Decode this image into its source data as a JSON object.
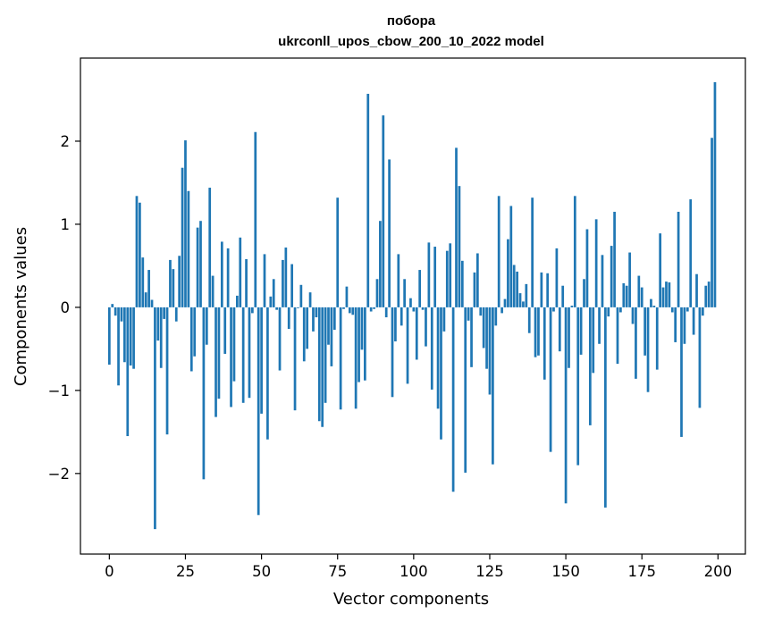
{
  "chart_data": {
    "type": "bar",
    "title": [
      "побора",
      "ukrconll_upos_cbow_200_10_2022 model"
    ],
    "xlabel": "Vector components",
    "ylabel": "Components values",
    "xlim": [
      -9.5,
      209
    ],
    "ylim": [
      -2.97,
      3.0
    ],
    "x_ticks": [
      0,
      25,
      50,
      75,
      100,
      125,
      150,
      175,
      200
    ],
    "x_tick_labels": [
      "0",
      "25",
      "50",
      "75",
      "100",
      "125",
      "150",
      "175",
      "200"
    ],
    "y_ticks": [
      -2,
      -1,
      0,
      1,
      2
    ],
    "y_tick_labels": [
      "−2",
      "−1",
      "0",
      "1",
      "2"
    ],
    "bar_color": "#1f77b4",
    "grid": false,
    "legend": "none",
    "x": [
      0,
      1,
      2,
      3,
      4,
      5,
      6,
      7,
      8,
      9,
      10,
      11,
      12,
      13,
      14,
      15,
      16,
      17,
      18,
      19,
      20,
      21,
      22,
      23,
      24,
      25,
      26,
      27,
      28,
      29,
      30,
      31,
      32,
      33,
      34,
      35,
      36,
      37,
      38,
      39,
      40,
      41,
      42,
      43,
      44,
      45,
      46,
      47,
      48,
      49,
      50,
      51,
      52,
      53,
      54,
      55,
      56,
      57,
      58,
      59,
      60,
      61,
      62,
      63,
      64,
      65,
      66,
      67,
      68,
      69,
      70,
      71,
      72,
      73,
      74,
      75,
      76,
      77,
      78,
      79,
      80,
      81,
      82,
      83,
      84,
      85,
      86,
      87,
      88,
      89,
      90,
      91,
      92,
      93,
      94,
      95,
      96,
      97,
      98,
      99,
      100,
      101,
      102,
      103,
      104,
      105,
      106,
      107,
      108,
      109,
      110,
      111,
      112,
      113,
      114,
      115,
      116,
      117,
      118,
      119,
      120,
      121,
      122,
      123,
      124,
      125,
      126,
      127,
      128,
      129,
      130,
      131,
      132,
      133,
      134,
      135,
      136,
      137,
      138,
      139,
      140,
      141,
      142,
      143,
      144,
      145,
      146,
      147,
      148,
      149,
      150,
      151,
      152,
      153,
      154,
      155,
      156,
      157,
      158,
      159,
      160,
      161,
      162,
      163,
      164,
      165,
      166,
      167,
      168,
      169,
      170,
      171,
      172,
      173,
      174,
      175,
      176,
      177,
      178,
      179,
      180,
      181,
      182,
      183,
      184,
      185,
      186,
      187,
      188,
      189,
      190,
      191,
      192,
      193,
      194,
      195,
      196,
      197,
      198,
      199
    ],
    "values": [
      -0.69,
      0.04,
      -0.1,
      -0.94,
      -0.17,
      -0.66,
      -1.55,
      -0.7,
      -0.74,
      1.34,
      1.26,
      0.6,
      0.18,
      0.45,
      0.09,
      -2.67,
      -0.4,
      -0.73,
      -0.14,
      -1.53,
      0.57,
      0.46,
      -0.17,
      0.62,
      1.68,
      2.01,
      1.4,
      -0.77,
      -0.59,
      0.96,
      1.04,
      -2.07,
      -0.45,
      1.44,
      0.38,
      -1.32,
      -1.1,
      0.79,
      -0.56,
      0.71,
      -1.2,
      -0.89,
      0.14,
      0.84,
      -1.15,
      0.58,
      -1.09,
      -0.07,
      2.11,
      -2.5,
      -1.28,
      0.64,
      -1.59,
      0.13,
      0.34,
      -0.03,
      -0.76,
      0.57,
      0.72,
      -0.26,
      0.52,
      -1.24,
      -0.01,
      0.27,
      -0.65,
      -0.5,
      0.18,
      -0.29,
      -0.12,
      -1.37,
      -1.44,
      -1.15,
      -0.45,
      -0.71,
      -0.27,
      1.32,
      -1.23,
      -0.02,
      0.25,
      -0.07,
      -0.09,
      -1.22,
      -0.9,
      -0.51,
      -0.88,
      2.57,
      -0.05,
      -0.02,
      0.34,
      1.04,
      2.31,
      -0.12,
      1.78,
      -1.08,
      -0.41,
      0.64,
      -0.22,
      0.34,
      -0.92,
      0.11,
      -0.05,
      -0.63,
      0.45,
      -0.03,
      -0.47,
      0.78,
      -0.99,
      0.73,
      -1.22,
      -1.59,
      -0.29,
      0.68,
      0.77,
      -2.22,
      1.92,
      1.46,
      0.56,
      -1.99,
      -0.16,
      -0.72,
      0.42,
      0.65,
      -0.1,
      -0.49,
      -0.74,
      -1.05,
      -1.89,
      -0.22,
      1.34,
      -0.07,
      0.1,
      0.82,
      1.22,
      0.51,
      0.43,
      0.17,
      0.07,
      0.28,
      -0.31,
      1.32,
      -0.6,
      -0.58,
      0.42,
      -0.87,
      0.41,
      -1.74,
      -0.05,
      0.71,
      -0.53,
      0.26,
      -2.36,
      -0.73,
      0.02,
      1.34,
      -1.9,
      -0.57,
      0.34,
      0.94,
      -1.42,
      -0.79,
      1.06,
      -0.44,
      0.63,
      -2.41,
      -0.11,
      0.74,
      1.15,
      -0.68,
      -0.06,
      0.29,
      0.26,
      0.66,
      -0.2,
      -0.86,
      0.38,
      0.24,
      -0.58,
      -1.02,
      0.1,
      0.02,
      -0.75,
      0.89,
      0.24,
      0.31,
      0.3,
      -0.06,
      -0.42,
      1.15,
      -1.56,
      -0.44,
      -0.05,
      1.3,
      -0.33,
      0.4,
      -1.21,
      -0.1,
      0.26,
      0.31,
      2.04,
      2.71
    ]
  }
}
